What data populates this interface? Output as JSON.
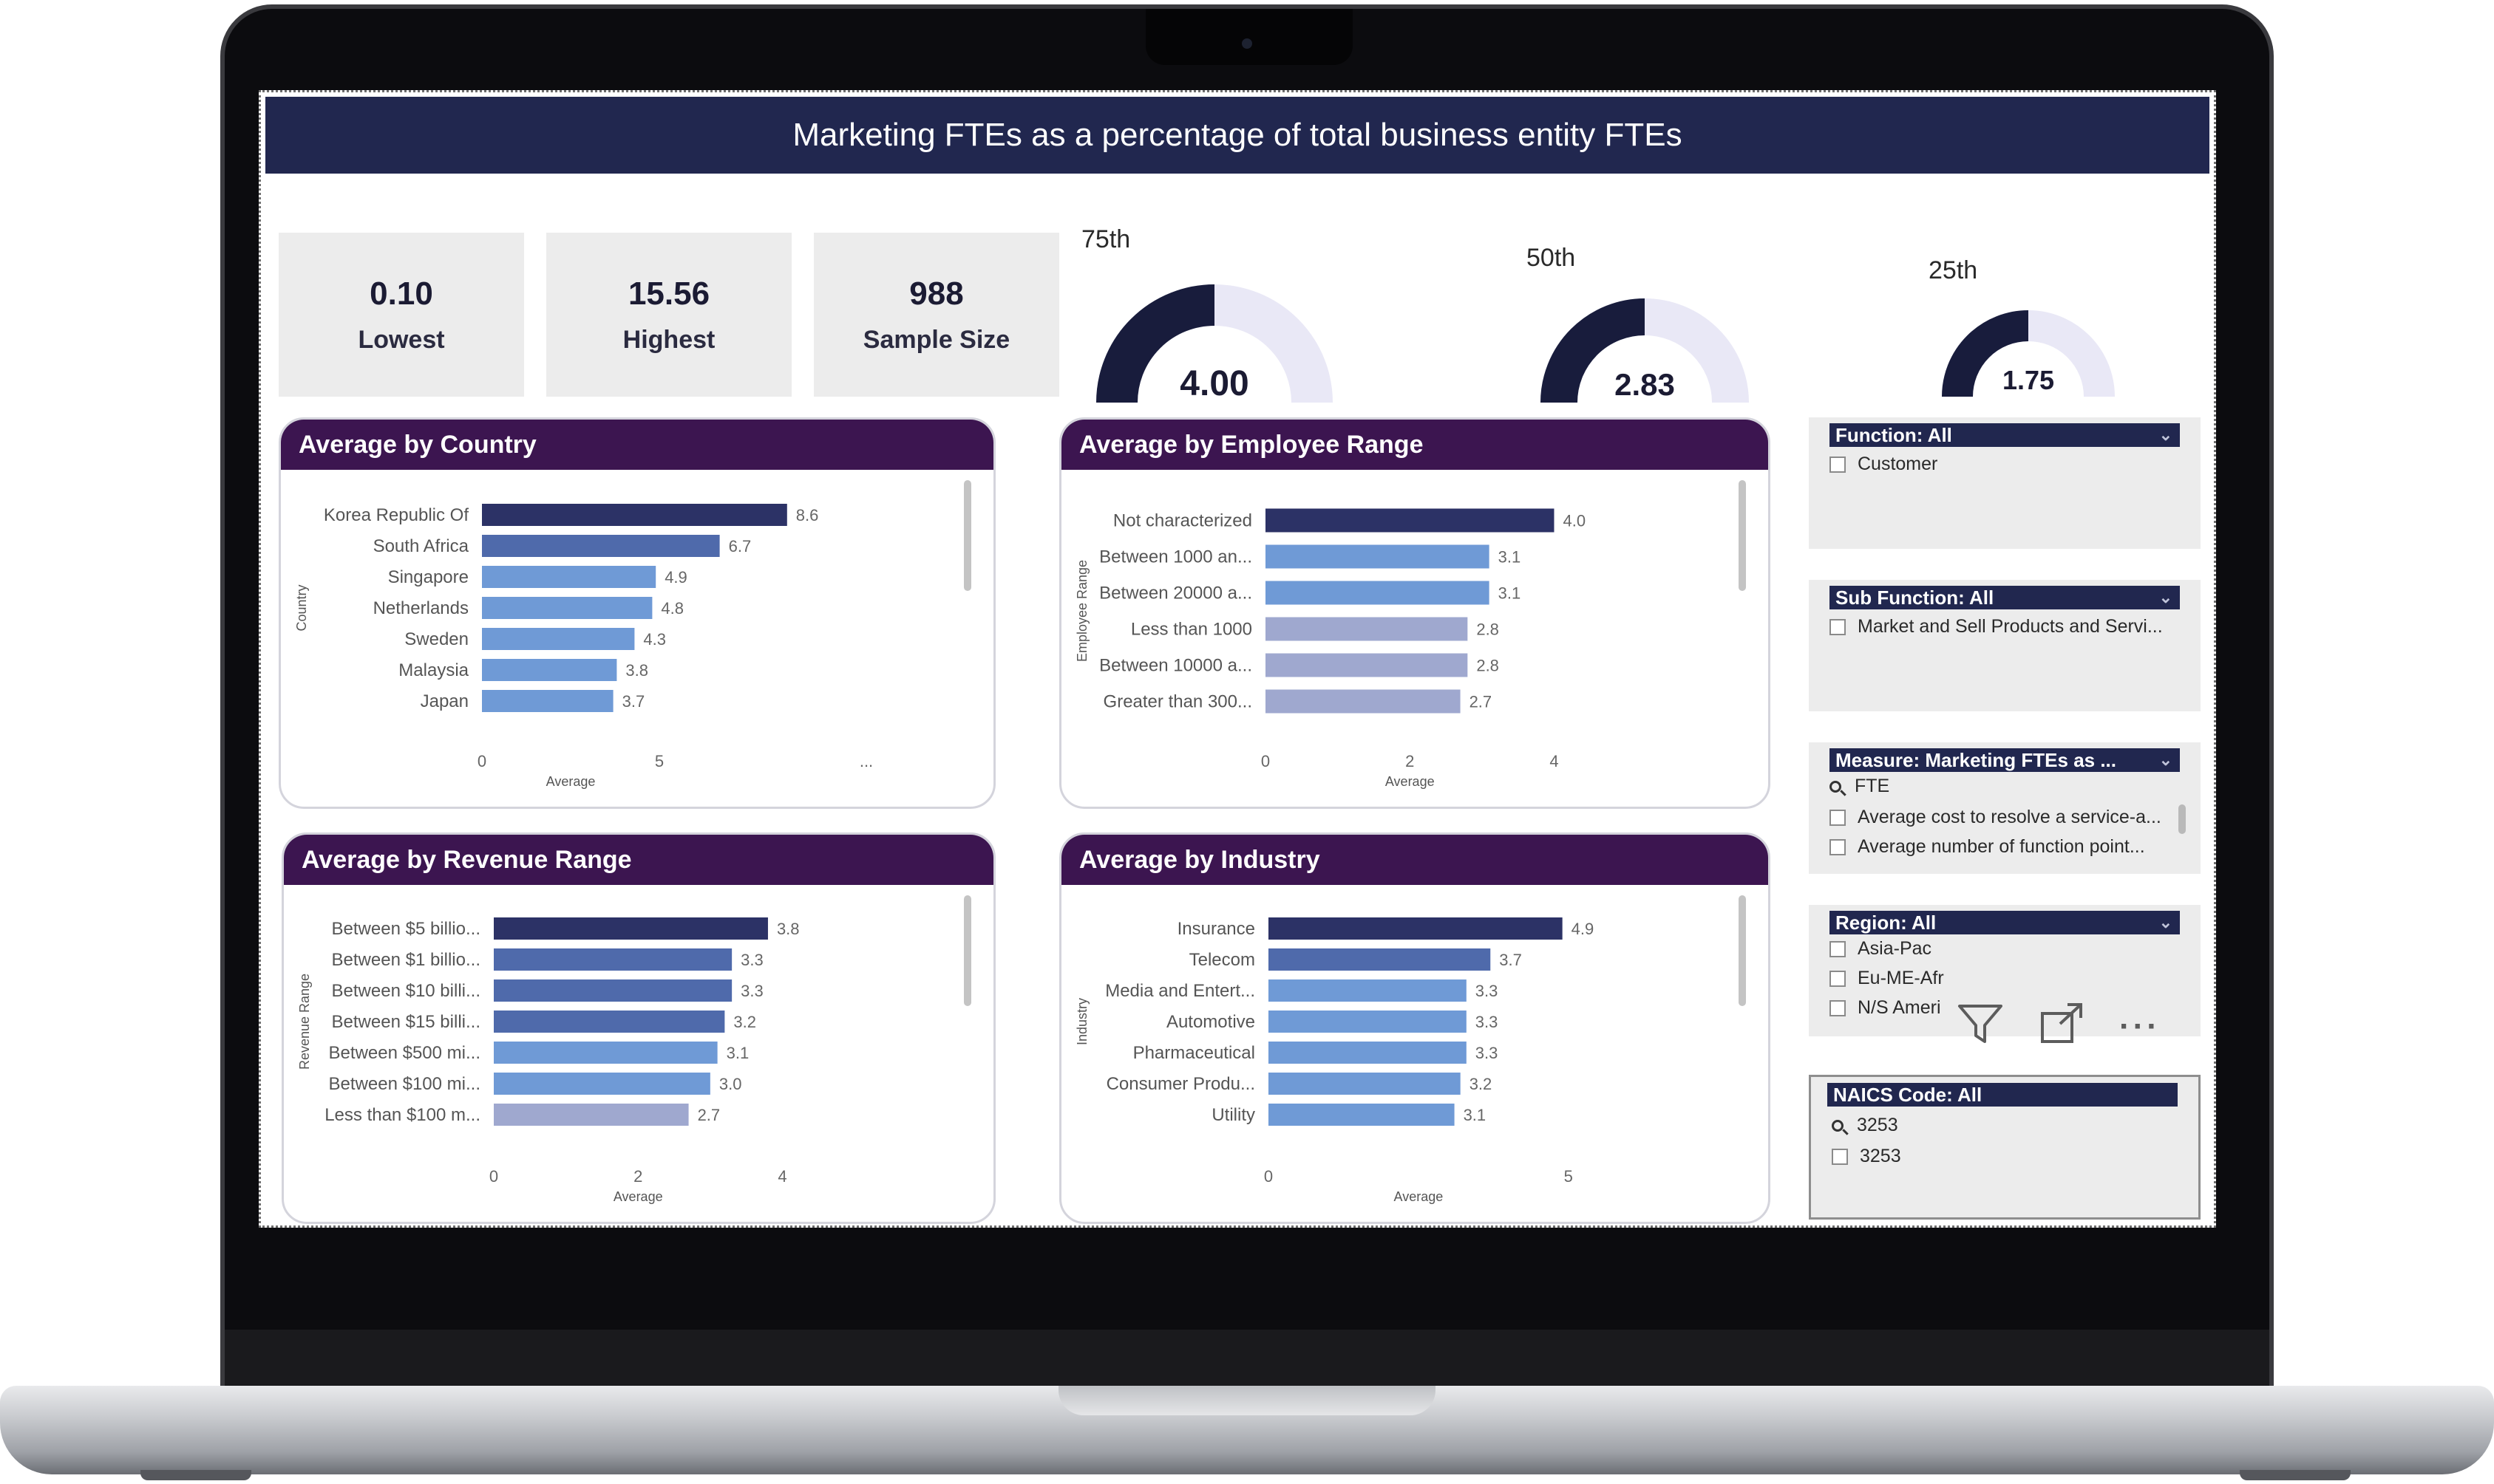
{
  "dashboard": {
    "title": "Marketing FTEs as a percentage of total business entity FTEs"
  },
  "kpis": [
    {
      "value": "0.10",
      "label": "Lowest"
    },
    {
      "value": "15.56",
      "label": "Highest"
    },
    {
      "value": "988",
      "label": "Sample Size"
    }
  ],
  "gauges": [
    {
      "label": "75th",
      "value": "4.00",
      "fill_fraction": 0.5
    },
    {
      "label": "50th",
      "value": "2.83",
      "fill_fraction": 0.5
    },
    {
      "label": "25th",
      "value": "1.75",
      "fill_fraction": 0.5
    }
  ],
  "colors": {
    "header_navy": "#21274f",
    "card_header_purple": "#3c1550",
    "bar_dark": "#2c3266",
    "bar_mid": "#4f6aab",
    "bar_light": "#6f9ad6",
    "bar_pale": "#9fa8cf"
  },
  "chart_data": [
    {
      "type": "bar",
      "orientation": "horizontal",
      "title": "Average by Country",
      "xlabel": "Average",
      "ylabel": "Country",
      "categories": [
        "Korea Republic Of",
        "South Africa",
        "Singapore",
        "Netherlands",
        "Sweden",
        "Malaysia",
        "Japan"
      ],
      "values": [
        8.6,
        6.7,
        4.9,
        4.8,
        4.3,
        3.8,
        3.7
      ],
      "value_labels": [
        "8.6",
        "6.7",
        "4.9",
        "4.8",
        "4.3",
        "3.8",
        "3.7"
      ],
      "x_ticks": [
        "0",
        "5"
      ],
      "xlim": [
        0,
        10
      ],
      "bar_colors": [
        "#2c3266",
        "#4f6aab",
        "#6f9ad6",
        "#6f9ad6",
        "#6f9ad6",
        "#6f9ad6",
        "#6f9ad6"
      ],
      "axis_overflow_mark": "...",
      "grid": false
    },
    {
      "type": "bar",
      "orientation": "horizontal",
      "title": "Average by Employee Range",
      "xlabel": "Average",
      "ylabel": "Employee Range",
      "categories": [
        "Not characterized",
        "Between 1000 an...",
        "Between 20000 a...",
        "Less than 1000",
        "Between 10000 a...",
        "Greater than 300..."
      ],
      "values": [
        4.0,
        3.1,
        3.1,
        2.8,
        2.8,
        2.7
      ],
      "value_labels": [
        "4.0",
        "3.1",
        "3.1",
        "2.8",
        "2.8",
        "2.7"
      ],
      "x_ticks": [
        "0",
        "2",
        "4"
      ],
      "xlim": [
        0,
        4.2
      ],
      "bar_colors": [
        "#2c3266",
        "#6f9ad6",
        "#6f9ad6",
        "#9fa8cf",
        "#9fa8cf",
        "#9fa8cf"
      ],
      "grid": false
    },
    {
      "type": "bar",
      "orientation": "horizontal",
      "title": "Average by Revenue Range",
      "xlabel": "Average",
      "ylabel": "Revenue Range",
      "categories": [
        "Between $5 billio...",
        "Between $1 billio...",
        "Between $10 billi...",
        "Between $15 billi...",
        "Between $500 mi...",
        "Between $100 mi...",
        "Less than $100 m..."
      ],
      "values": [
        3.8,
        3.3,
        3.3,
        3.2,
        3.1,
        3.0,
        2.7
      ],
      "value_labels": [
        "3.8",
        "3.3",
        "3.3",
        "3.2",
        "3.1",
        "3.0",
        "2.7"
      ],
      "x_ticks": [
        "0",
        "2",
        "4"
      ],
      "xlim": [
        0,
        4.2
      ],
      "bar_colors": [
        "#2c3266",
        "#4f6aab",
        "#4f6aab",
        "#4f6aab",
        "#6f9ad6",
        "#6f9ad6",
        "#9fa8cf"
      ],
      "grid": false
    },
    {
      "type": "bar",
      "orientation": "horizontal",
      "title": "Average by Industry",
      "xlabel": "Average",
      "ylabel": "Industry",
      "categories": [
        "Insurance",
        "Telecom",
        "Media and Entert...",
        "Automotive",
        "Pharmaceutical",
        "Consumer Produ...",
        "Utility"
      ],
      "values": [
        4.9,
        3.7,
        3.3,
        3.3,
        3.3,
        3.2,
        3.1
      ],
      "value_labels": [
        "4.9",
        "3.7",
        "3.3",
        "3.3",
        "3.3",
        "3.2",
        "3.1"
      ],
      "x_ticks": [
        "0",
        "5"
      ],
      "xlim": [
        0,
        5.2
      ],
      "bar_colors": [
        "#2c3266",
        "#4f6aab",
        "#6f9ad6",
        "#6f9ad6",
        "#6f9ad6",
        "#6f9ad6",
        "#6f9ad6"
      ],
      "grid": false
    }
  ],
  "slicers": {
    "function": {
      "header": "Function: All",
      "items": [
        "Customer"
      ]
    },
    "sub_function": {
      "header": "Sub Function: All",
      "items": [
        "Market and Sell Products and Servi..."
      ]
    },
    "measure": {
      "header": "Measure: Marketing FTEs as ...",
      "search_value": "FTE",
      "items": [
        "Average cost to resolve a service-a...",
        "Average number of function point..."
      ]
    },
    "region": {
      "header": "Region: All",
      "items": [
        "Asia-Pac",
        "Eu-ME-Afr",
        "N/S Ameri"
      ]
    },
    "naics": {
      "header": "NAICS Code: All",
      "search_value": "3253",
      "items": [
        "3253"
      ]
    }
  },
  "visual_tools": {
    "filter_icon": "filter-icon",
    "focus_icon": "focus-mode-icon",
    "more_icon": "more-options-icon",
    "more_label": "···"
  }
}
